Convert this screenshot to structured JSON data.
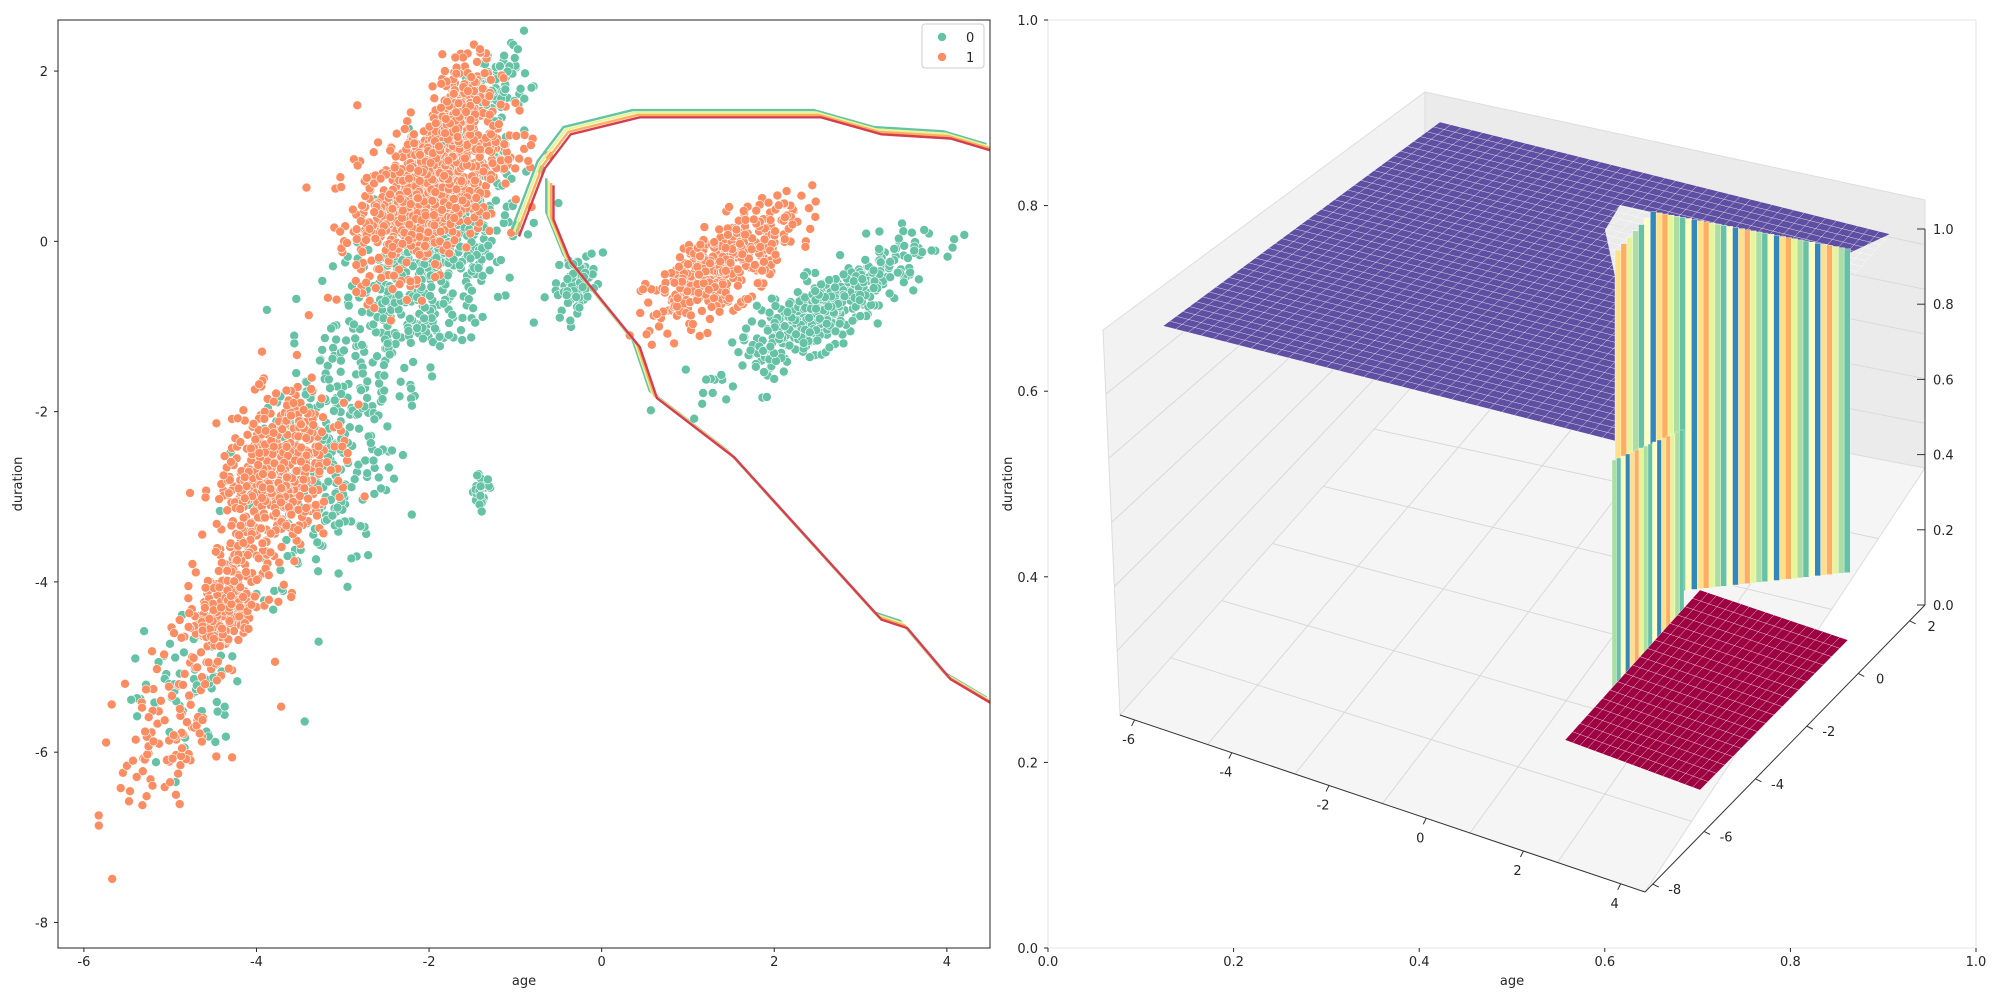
{
  "chart_data": [
    {
      "type": "scatter",
      "title": "",
      "xlabel": "age",
      "ylabel": "duration",
      "xlim": [
        -6.3,
        4.5
      ],
      "ylim": [
        -8.3,
        2.6
      ],
      "xticks": [
        -6,
        -4,
        -2,
        0,
        2,
        4
      ],
      "yticks": [
        -8,
        -6,
        -4,
        -2,
        0,
        2
      ],
      "grid": false,
      "legend": {
        "position": "top-right",
        "entries": [
          "0",
          "1"
        ]
      },
      "colors": {
        "0": "#66c2a5",
        "1": "#fc8d62",
        "contour": [
          "#3288bd",
          "#66c2a5",
          "#abdda4",
          "#e6f598",
          "#fee08b",
          "#fdae61",
          "#f46d43",
          "#d53e4f"
        ]
      },
      "series": [
        {
          "name": "0",
          "clusters": [
            {
              "cx": -2.0,
              "cy": -0.3,
              "sx": 0.9,
              "sy": 0.9,
              "n": 520
            },
            {
              "cx": -3.2,
              "cy": -2.6,
              "sx": 0.7,
              "sy": 1.2,
              "n": 260
            },
            {
              "cx": -4.8,
              "cy": -5.2,
              "sx": 0.5,
              "sy": 0.8,
              "n": 80
            },
            {
              "cx": -1.2,
              "cy": 1.8,
              "sx": 0.3,
              "sy": 0.4,
              "n": 90
            },
            {
              "cx": -0.3,
              "cy": -0.5,
              "sx": 0.2,
              "sy": 0.25,
              "n": 80
            },
            {
              "cx": 2.6,
              "cy": -0.8,
              "sx": 0.9,
              "sy": 0.35,
              "n": 420
            },
            {
              "cx": -1.4,
              "cy": -2.9,
              "sx": 0.12,
              "sy": 0.2,
              "n": 25
            }
          ]
        },
        {
          "name": "1",
          "clusters": [
            {
              "cx": -2.0,
              "cy": 0.6,
              "sx": 0.7,
              "sy": 0.7,
              "n": 900
            },
            {
              "cx": -1.6,
              "cy": 1.7,
              "sx": 0.3,
              "sy": 0.4,
              "n": 160
            },
            {
              "cx": -3.8,
              "cy": -2.8,
              "sx": 0.55,
              "sy": 0.8,
              "n": 520
            },
            {
              "cx": -4.4,
              "cy": -4.4,
              "sx": 0.4,
              "sy": 0.5,
              "n": 220
            },
            {
              "cx": -5.0,
              "cy": -5.8,
              "sx": 0.5,
              "sy": 0.8,
              "n": 90
            },
            {
              "cx": 1.4,
              "cy": -0.3,
              "sx": 0.7,
              "sy": 0.4,
              "n": 420
            }
          ]
        }
      ],
      "decision_boundary": [
        [
          -1.0,
          0.1
        ],
        [
          -0.7,
          0.9
        ],
        [
          -0.4,
          1.3
        ],
        [
          0.0,
          1.4
        ],
        [
          0.4,
          1.5
        ],
        [
          2.5,
          1.5
        ],
        [
          3.2,
          1.3
        ],
        [
          4.0,
          1.25
        ],
        [
          4.5,
          1.1
        ]
      ],
      "decision_boundary_lower": [
        [
          -0.6,
          0.7
        ],
        [
          -0.6,
          0.3
        ],
        [
          -0.4,
          -0.2
        ],
        [
          0.0,
          -0.7
        ],
        [
          0.4,
          -1.2
        ],
        [
          0.6,
          -1.8
        ],
        [
          1.5,
          -2.5
        ],
        [
          3.2,
          -4.4
        ],
        [
          3.5,
          -4.5
        ],
        [
          4.0,
          -5.1
        ],
        [
          4.5,
          -5.4
        ]
      ]
    },
    {
      "type": "surface3d",
      "title": "",
      "xlabel": "age",
      "ylabel": "duration",
      "xlim": [
        0.0,
        1.0
      ],
      "ylim": [
        0.0,
        1.0
      ],
      "xticks": [
        0.0,
        0.2,
        0.4,
        0.6,
        0.8,
        1.0
      ],
      "yticks": [
        0.0,
        0.2,
        0.4,
        0.6,
        0.8,
        1.0
      ],
      "x3d_ticks": [
        -6,
        -4,
        -2,
        0,
        2,
        4
      ],
      "y3d_ticks": [
        -8,
        -6,
        -4,
        -2,
        0,
        2
      ],
      "z3d_ticks": [
        0.0,
        0.2,
        0.4,
        0.6,
        0.8,
        1.0
      ],
      "x3d_range": [
        -6.3,
        4.5
      ],
      "y3d_range": [
        -8.3,
        2.6
      ],
      "z3d_range": [
        0.0,
        1.0
      ],
      "colors": {
        "high": "#5e4fa2",
        "low": "#9e0142",
        "wall": [
          "#fee08b",
          "#fdae61",
          "#e6f598",
          "#abdda4",
          "#66c2a5",
          "#ffffbf",
          "#3288bd"
        ]
      }
    }
  ]
}
